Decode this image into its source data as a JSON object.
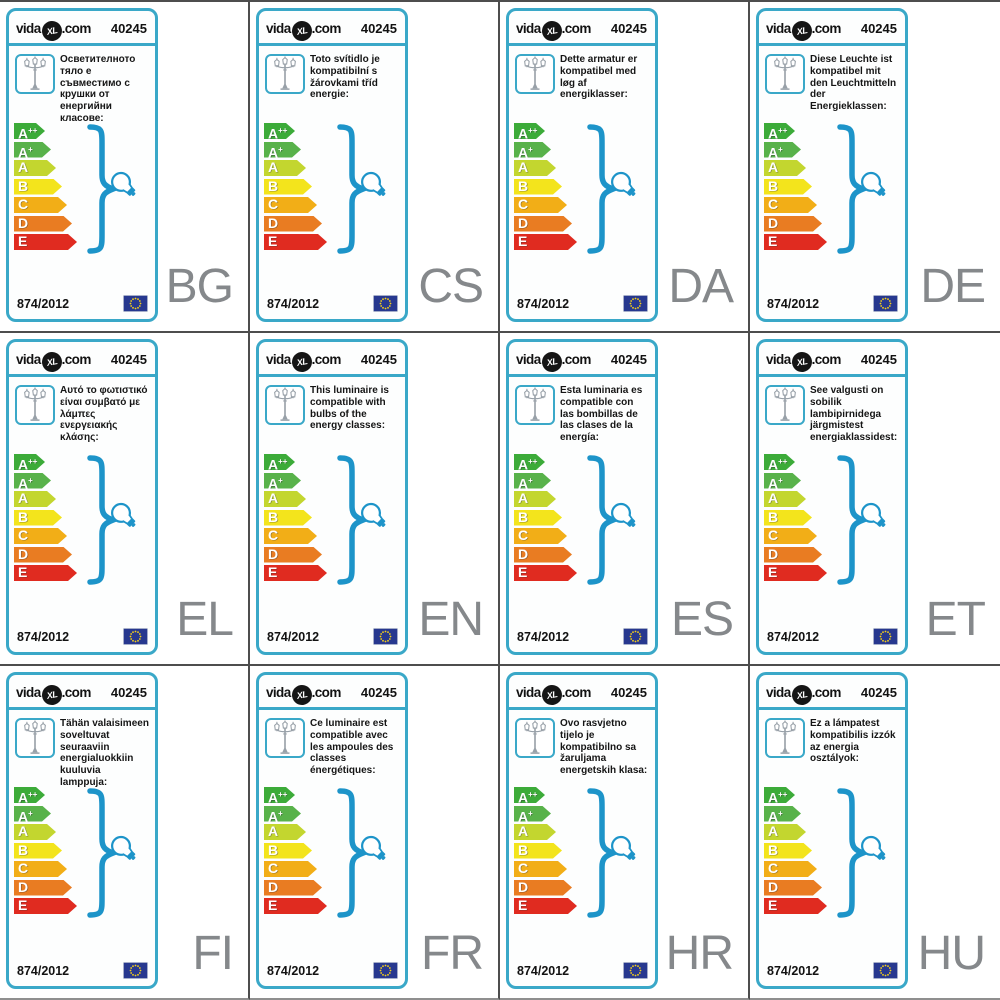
{
  "shared": {
    "brand": {
      "vida": "vida",
      "xl": "XL",
      "com": ".com"
    },
    "product_number": "40245",
    "regulation": "874/2012",
    "energy_classes": [
      {
        "label": "A",
        "sup": "++",
        "color": "#3cab39",
        "width": 31
      },
      {
        "label": "A",
        "sup": "+",
        "color": "#58b24a",
        "width": 37
      },
      {
        "label": "A",
        "sup": "",
        "color": "#c3d62f",
        "width": 42
      },
      {
        "label": "B",
        "sup": "",
        "color": "#f3e41c",
        "width": 48
      },
      {
        "label": "C",
        "sup": "",
        "color": "#f2ae17",
        "width": 53
      },
      {
        "label": "D",
        "sup": "",
        "color": "#e97c22",
        "width": 58
      },
      {
        "label": "E",
        "sup": "",
        "color": "#e02b20",
        "width": 63
      }
    ],
    "colors": {
      "card_border_teal": "#3aa8c8",
      "brace_blue": "#1d94c9",
      "grid_line": "#4d4d4d",
      "language_code_gray": "#85888b",
      "flag_blue": "#27388f",
      "flag_star_yellow": "#f7d117",
      "lamp_icon_gray": "#98a0a8"
    }
  },
  "labels": [
    {
      "lang_code": "BG",
      "description": "Осветителното тяло е съвместимо с крушки от енергийни класове:"
    },
    {
      "lang_code": "CS",
      "description": "Toto svítidlo je kompatibilní s žárovkami tříd energie:"
    },
    {
      "lang_code": "DA",
      "description": "Dette armatur er kompatibel med løg af energiklasser:"
    },
    {
      "lang_code": "DE",
      "description": "Diese Leuchte ist kompatibel mit den Leuchtmitteln der Energieklassen:"
    },
    {
      "lang_code": "EL",
      "description": "Αυτό το φωτιστικό είναι συμβατό με λάμπες ενεργειακής κλάσης:"
    },
    {
      "lang_code": "EN",
      "description": "This luminaire is compatible with bulbs of the energy classes:"
    },
    {
      "lang_code": "ES",
      "description": "Esta luminaria es compatible con las bombillas de las clases de la energía:"
    },
    {
      "lang_code": "ET",
      "description": "See valgusti on sobilik lambipirnidega järgmistest energiaklassidest:"
    },
    {
      "lang_code": "FI",
      "description": "Tähän valaisimeen soveltuvat seuraaviin energialuokkiin kuuluvia lamppuja:"
    },
    {
      "lang_code": "FR",
      "description": "Ce luminaire est compatible avec les ampoules des classes énergétiques:"
    },
    {
      "lang_code": "HR",
      "description": "Ovo rasvjetno tijelo je kompatibilno sa žaruljama energetskih klasa:"
    },
    {
      "lang_code": "HU",
      "description": "Ez a lámpatest kompatibilis izzók az energia osztályok:"
    }
  ]
}
